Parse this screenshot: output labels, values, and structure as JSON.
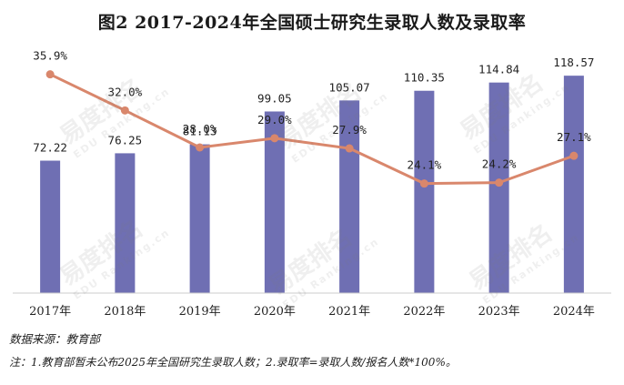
{
  "chart_data": {
    "type": "bar",
    "title": "图2 2017-2024年全国硕士研究生录取人数及录取率",
    "categories": [
      "2017年",
      "2018年",
      "2019年",
      "2020年",
      "2021年",
      "2022年",
      "2023年",
      "2024年"
    ],
    "series": [
      {
        "type": "bar",
        "values": [
          72.22,
          76.25,
          81.13,
          99.05,
          105.07,
          110.35,
          114.84,
          118.57
        ],
        "labels": [
          "72.22",
          "76.25",
          "81.13",
          "99.05",
          "105.07",
          "110.35",
          "114.84",
          "118.57"
        ],
        "color": "#6f6fb3"
      },
      {
        "type": "line",
        "values": [
          35.9,
          32.0,
          28.0,
          29.0,
          27.9,
          24.1,
          24.2,
          27.1
        ],
        "labels": [
          "35.9%",
          "32.0%",
          "28.0%",
          "29.0%",
          "27.9%",
          "24.1%",
          "24.2%",
          "27.1%"
        ],
        "color": "#d9876c"
      }
    ],
    "bar_ylim": [
      0,
      140
    ],
    "line_ylim": [
      10,
      40
    ],
    "grid": false,
    "legend": false
  },
  "notes": {
    "source": "数据来源：教育部",
    "footnote": "注：1.教育部暂未公布2025年全国研究生录取人数；2.录取率=录取人数/报名人数*100%。"
  },
  "watermark": {
    "text": "易度排名",
    "sub": "EDU Ranking.cn"
  }
}
